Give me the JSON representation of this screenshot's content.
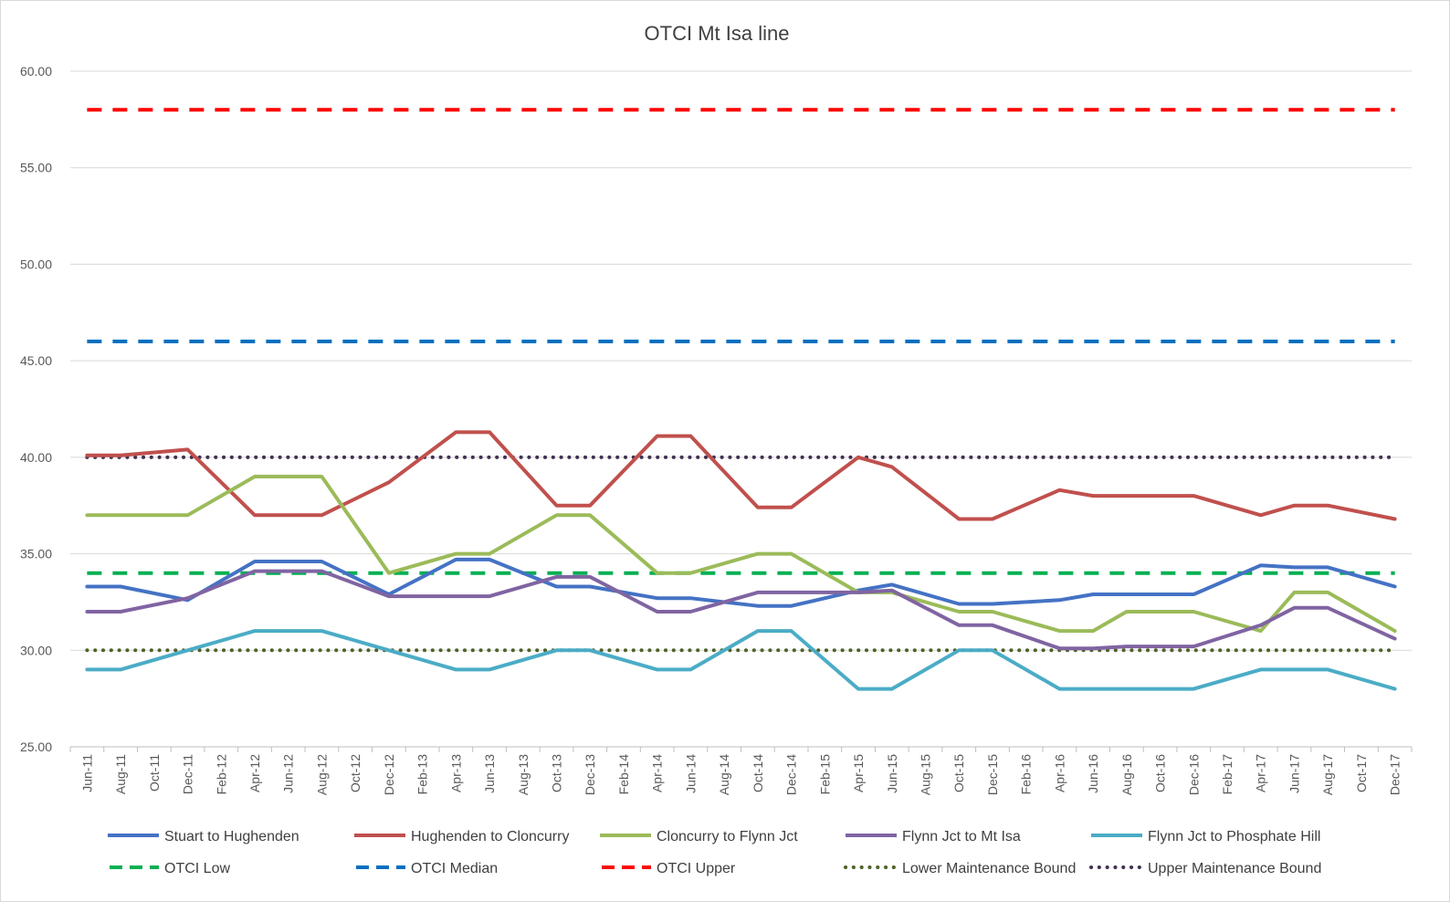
{
  "chart_data": {
    "type": "line",
    "title": "OTCI Mt Isa line",
    "xlabel": "",
    "ylabel": "",
    "ylim": [
      25,
      60
    ],
    "yticks": [
      "25.00",
      "30.00",
      "35.00",
      "40.00",
      "45.00",
      "50.00",
      "55.00",
      "60.00"
    ],
    "ytick_values": [
      25,
      30,
      35,
      40,
      45,
      50,
      55,
      60
    ],
    "grid": "horizontal",
    "legend_position": "bottom",
    "categories": [
      "Jun-11",
      "Aug-11",
      "Oct-11",
      "Dec-11",
      "Feb-12",
      "Apr-12",
      "Jun-12",
      "Aug-12",
      "Oct-12",
      "Dec-12",
      "Feb-13",
      "Apr-13",
      "Jun-13",
      "Aug-13",
      "Oct-13",
      "Dec-13",
      "Feb-14",
      "Apr-14",
      "Jun-14",
      "Aug-14",
      "Oct-14",
      "Dec-14",
      "Feb-15",
      "Apr-15",
      "Jun-15",
      "Aug-15",
      "Oct-15",
      "Dec-15",
      "Feb-16",
      "Apr-16",
      "Jun-16",
      "Aug-16",
      "Oct-16",
      "Dec-16",
      "Feb-17",
      "Apr-17",
      "Jun-17",
      "Aug-17",
      "Oct-17",
      "Dec-17"
    ],
    "point_categories": [
      "Jun-11",
      "Oct-11",
      "Feb-12",
      "Jun-12",
      "Oct-12",
      "Feb-13",
      "Jun-13",
      "Oct-13",
      "Feb-14",
      "Jun-14",
      "Oct-14",
      "Feb-15",
      "Jun-15",
      "Oct-15",
      "Feb-16",
      "Jun-16",
      "Oct-16",
      "Feb-17",
      "Jun-17",
      "Oct-17"
    ],
    "series": [
      {
        "name": "Stuart to Hughenden",
        "color": "#4472c4",
        "style": "solid",
        "x": [
          "Jun-11",
          "Aug-11",
          "Dec-11",
          "Apr-12",
          "Jun-12",
          "Aug-12",
          "Dec-12",
          "Apr-13",
          "Jun-13",
          "Oct-13",
          "Dec-13",
          "Apr-14",
          "Jun-14",
          "Oct-14",
          "Dec-14",
          "Apr-15",
          "Jun-15",
          "Oct-15",
          "Dec-15",
          "Apr-16",
          "Jun-16",
          "Aug-16",
          "Oct-16",
          "Dec-16",
          "Apr-17",
          "Jun-17",
          "Aug-17",
          "Dec-17"
        ],
        "values": [
          33.3,
          33.3,
          32.6,
          34.6,
          34.6,
          34.6,
          32.9,
          34.7,
          34.7,
          33.3,
          33.3,
          32.7,
          32.7,
          32.3,
          32.3,
          33.1,
          33.4,
          32.4,
          32.4,
          32.6,
          32.9,
          32.9,
          32.9,
          32.9,
          34.4,
          34.3,
          34.3,
          33.3
        ]
      },
      {
        "name": "Hughenden to Cloncurry",
        "color": "#c0504d",
        "style": "solid",
        "x": [
          "Jun-11",
          "Aug-11",
          "Dec-11",
          "Apr-12",
          "Jun-12",
          "Aug-12",
          "Dec-12",
          "Apr-13",
          "Jun-13",
          "Oct-13",
          "Dec-13",
          "Apr-14",
          "Jun-14",
          "Oct-14",
          "Dec-14",
          "Apr-15",
          "Jun-15",
          "Oct-15",
          "Dec-15",
          "Apr-16",
          "Jun-16",
          "Aug-16",
          "Oct-16",
          "Dec-16",
          "Apr-17",
          "Jun-17",
          "Aug-17",
          "Dec-17"
        ],
        "values": [
          40.1,
          40.1,
          40.4,
          37.0,
          37.0,
          37.0,
          38.7,
          41.3,
          41.3,
          37.5,
          37.5,
          41.1,
          41.1,
          37.4,
          37.4,
          40.0,
          39.5,
          36.8,
          36.8,
          38.3,
          38.0,
          38.0,
          38.0,
          38.0,
          37.0,
          37.5,
          37.5,
          36.8
        ]
      },
      {
        "name": "Cloncurry to Flynn Jct",
        "color": "#9bbb59",
        "style": "solid",
        "x": [
          "Jun-11",
          "Aug-11",
          "Dec-11",
          "Apr-12",
          "Jun-12",
          "Aug-12",
          "Dec-12",
          "Apr-13",
          "Jun-13",
          "Oct-13",
          "Dec-13",
          "Apr-14",
          "Jun-14",
          "Oct-14",
          "Dec-14",
          "Apr-15",
          "Jun-15",
          "Oct-15",
          "Dec-15",
          "Apr-16",
          "Jun-16",
          "Aug-16",
          "Oct-16",
          "Dec-16",
          "Apr-17",
          "Jun-17",
          "Aug-17",
          "Dec-17"
        ],
        "values": [
          37.0,
          37.0,
          37.0,
          39.0,
          39.0,
          39.0,
          34.0,
          35.0,
          35.0,
          37.0,
          37.0,
          34.0,
          34.0,
          35.0,
          35.0,
          33.0,
          33.0,
          32.0,
          32.0,
          31.0,
          31.0,
          32.0,
          32.0,
          32.0,
          31.0,
          33.0,
          33.0,
          31.0
        ]
      },
      {
        "name": "Flynn Jct to Mt Isa",
        "color": "#8064a2",
        "style": "solid",
        "x": [
          "Jun-11",
          "Aug-11",
          "Dec-11",
          "Apr-12",
          "Jun-12",
          "Aug-12",
          "Dec-12",
          "Apr-13",
          "Jun-13",
          "Oct-13",
          "Dec-13",
          "Apr-14",
          "Jun-14",
          "Oct-14",
          "Dec-14",
          "Apr-15",
          "Jun-15",
          "Oct-15",
          "Dec-15",
          "Apr-16",
          "Jun-16",
          "Aug-16",
          "Oct-16",
          "Dec-16",
          "Apr-17",
          "Jun-17",
          "Aug-17",
          "Dec-17"
        ],
        "values": [
          32.0,
          32.0,
          32.7,
          34.1,
          34.1,
          34.1,
          32.8,
          32.8,
          32.8,
          33.8,
          33.8,
          32.0,
          32.0,
          33.0,
          33.0,
          33.0,
          33.1,
          31.3,
          31.3,
          30.1,
          30.1,
          30.2,
          30.2,
          30.2,
          31.3,
          32.2,
          32.2,
          30.6
        ]
      },
      {
        "name": "Flynn Jct to Phosphate Hill",
        "color": "#4bacc6",
        "style": "solid",
        "x": [
          "Jun-11",
          "Aug-11",
          "Dec-11",
          "Apr-12",
          "Jun-12",
          "Aug-12",
          "Dec-12",
          "Apr-13",
          "Jun-13",
          "Oct-13",
          "Dec-13",
          "Apr-14",
          "Jun-14",
          "Oct-14",
          "Dec-14",
          "Apr-15",
          "Jun-15",
          "Oct-15",
          "Dec-15",
          "Apr-16",
          "Jun-16",
          "Aug-16",
          "Oct-16",
          "Dec-16",
          "Apr-17",
          "Jun-17",
          "Aug-17",
          "Dec-17"
        ],
        "values": [
          29.0,
          29.0,
          30.0,
          31.0,
          31.0,
          31.0,
          30.0,
          29.0,
          29.0,
          30.0,
          30.0,
          29.0,
          29.0,
          31.0,
          31.0,
          28.0,
          28.0,
          30.0,
          30.0,
          28.0,
          28.0,
          28.0,
          28.0,
          28.0,
          29.0,
          29.0,
          29.0,
          28.0
        ]
      },
      {
        "name": "OTCI Low",
        "color": "#00b050",
        "style": "dashed",
        "constant": 34.0
      },
      {
        "name": "OTCI Median",
        "color": "#0070c0",
        "style": "dashed",
        "constant": 46.0
      },
      {
        "name": "OTCI Upper",
        "color": "#ff0000",
        "style": "dashed",
        "constant": 58.0
      },
      {
        "name": "Lower Maintenance Bound",
        "color": "#4f6228",
        "style": "dotted",
        "constant": 30.0
      },
      {
        "name": "Upper Maintenance Bound",
        "color": "#403151",
        "style": "dotted",
        "constant": 40.0
      }
    ]
  }
}
